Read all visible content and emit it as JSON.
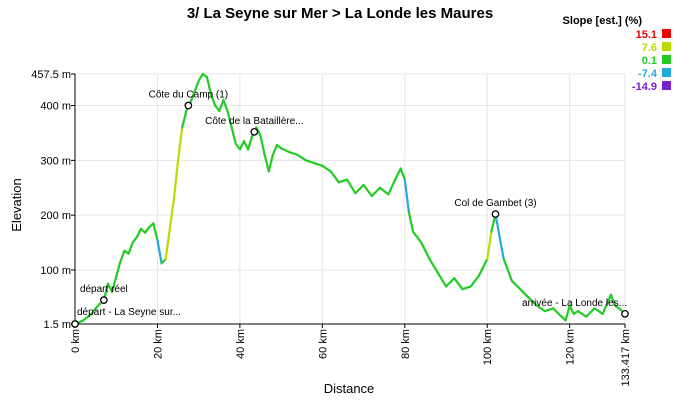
{
  "chart_data": {
    "type": "line",
    "title": "3/ La Seyne sur Mer > La Londe les Maures",
    "xlabel": "Distance",
    "ylabel": "Elevation",
    "xlim": [
      0,
      133.417
    ],
    "ylim": [
      1.5,
      457.5
    ],
    "x_ticks": [
      {
        "value": 0,
        "label": "0 km"
      },
      {
        "value": 20,
        "label": "20 km"
      },
      {
        "value": 40,
        "label": "40 km"
      },
      {
        "value": 60,
        "label": "60 km"
      },
      {
        "value": 80,
        "label": "80 km"
      },
      {
        "value": 100,
        "label": "100 km"
      },
      {
        "value": 120,
        "label": "120 km"
      },
      {
        "value": 133.417,
        "label": "133.417 km"
      }
    ],
    "y_ticks": [
      {
        "value": 1.5,
        "label": "1.5 m"
      },
      {
        "value": 100,
        "label": "100 m"
      },
      {
        "value": 200,
        "label": "200 m"
      },
      {
        "value": 300,
        "label": "300 m"
      },
      {
        "value": 400,
        "label": "400 m"
      },
      {
        "value": 457.5,
        "label": "457.5 m"
      }
    ],
    "grid": true,
    "legend": {
      "title": "Slope [est.] (%)",
      "placement": "top-right",
      "entries": [
        {
          "label": "15.1",
          "color": "#ee0000"
        },
        {
          "label": "7.6",
          "color": "#b8dd00"
        },
        {
          "label": "0.1",
          "color": "#22cc22"
        },
        {
          "label": "-7.4",
          "color": "#22aadd"
        },
        {
          "label": "-14.9",
          "color": "#7722cc"
        }
      ]
    },
    "waypoints": [
      {
        "label": "départ - La Seyne sur...",
        "x": 0,
        "y": 1.5
      },
      {
        "label": "départ réel",
        "x": 7,
        "y": 45
      },
      {
        "label": "Côte du Camp (1)",
        "x": 27.5,
        "y": 400
      },
      {
        "label": "Côte de la Bataillère...",
        "x": 43.5,
        "y": 352
      },
      {
        "label": "Col de Gambet (3)",
        "x": 102,
        "y": 202
      },
      {
        "label": "arrivée - La Londe les...",
        "x": 133.417,
        "y": 20
      }
    ],
    "series": [
      {
        "x": [
          0,
          2,
          4,
          5,
          6,
          7,
          8,
          9,
          10,
          11,
          12,
          13,
          14,
          15,
          16,
          17,
          18,
          19,
          20,
          21,
          22,
          23,
          24,
          25,
          26,
          27,
          27.5,
          28,
          29,
          30,
          31,
          32,
          33,
          34,
          35,
          36,
          37,
          38,
          39,
          40,
          41,
          42,
          43,
          43.5,
          44,
          45,
          46,
          47,
          48,
          49,
          50,
          52,
          54,
          56,
          58,
          60,
          62,
          64,
          66,
          68,
          70,
          72,
          74,
          76,
          78,
          79,
          80,
          81,
          82,
          84,
          86,
          88,
          90,
          92,
          94,
          96,
          98,
          100,
          101,
          102,
          103,
          104,
          106,
          108,
          110,
          112,
          114,
          116,
          118,
          119,
          120,
          121,
          122,
          124,
          126,
          128,
          130,
          131,
          132,
          133.417
        ],
        "y": [
          1.5,
          8,
          20,
          30,
          38,
          45,
          75,
          60,
          88,
          115,
          135,
          130,
          150,
          160,
          175,
          168,
          178,
          185,
          155,
          112,
          120,
          175,
          230,
          300,
          360,
          390,
          400,
          405,
          425,
          445,
          457.5,
          452,
          420,
          400,
          390,
          410,
          390,
          360,
          330,
          320,
          335,
          320,
          345,
          352,
          360,
          345,
          310,
          280,
          310,
          328,
          322,
          315,
          310,
          300,
          295,
          290,
          280,
          260,
          265,
          240,
          255,
          235,
          250,
          238,
          270,
          285,
          265,
          205,
          170,
          150,
          120,
          95,
          70,
          85,
          65,
          70,
          90,
          120,
          170,
          202,
          160,
          120,
          80,
          65,
          50,
          35,
          25,
          30,
          15,
          8,
          35,
          20,
          25,
          15,
          30,
          20,
          55,
          35,
          30,
          20
        ]
      }
    ]
  }
}
